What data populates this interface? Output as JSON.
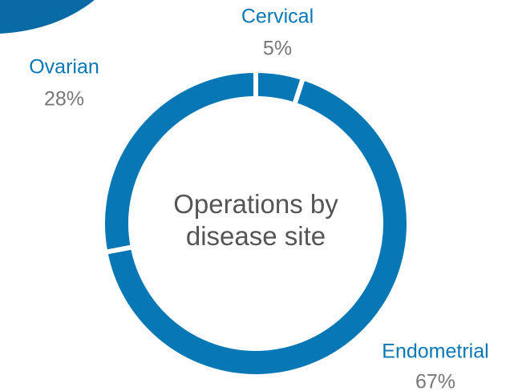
{
  "chart_data": {
    "type": "donut",
    "title": "Operations by disease site",
    "categories": [
      "Cervical",
      "Endometrial",
      "Ovarian"
    ],
    "values": [
      5,
      67,
      28
    ],
    "value_labels": [
      "5%",
      "67%",
      "28%"
    ],
    "color": "#0778b5"
  }
}
